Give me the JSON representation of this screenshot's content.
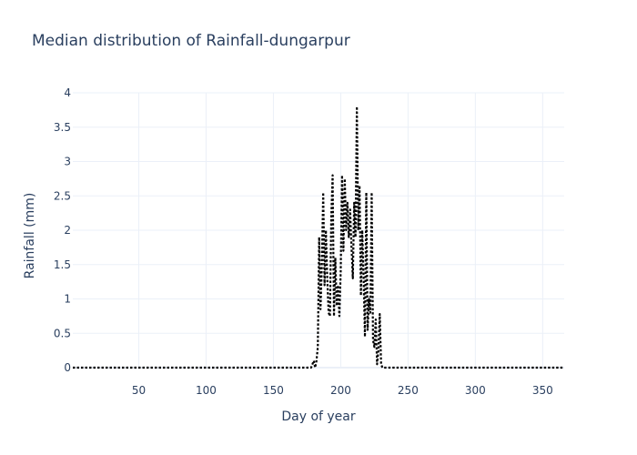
{
  "chart_data": {
    "type": "line",
    "title": "Median distribution of Rainfall-dungarpur",
    "xlabel": "Day of year",
    "ylabel": "Rainfall (mm)",
    "xlim": [
      1,
      366
    ],
    "ylim": [
      0,
      4
    ],
    "grid": true,
    "x_ticks": [
      50,
      100,
      150,
      200,
      250,
      300,
      350
    ],
    "y_ticks": [
      0,
      0.5,
      1,
      1.5,
      2,
      2.5,
      3,
      3.5,
      4
    ],
    "x_tick_labels": [
      "50",
      "100",
      "150",
      "200",
      "250",
      "300",
      "350"
    ],
    "y_tick_labels": [
      "0",
      "0.5",
      "1",
      "1.5",
      "2",
      "2.5",
      "3",
      "3.5",
      "4"
    ],
    "line_style": "dotted",
    "line_color": "#000000",
    "series": [
      {
        "x": [
          1,
          178,
          179,
          180,
          181,
          182,
          183,
          184,
          185,
          186,
          187,
          188,
          189,
          190,
          191,
          192,
          193,
          194,
          195,
          196,
          197,
          198,
          199,
          200,
          201,
          202,
          203,
          204,
          205,
          206,
          207,
          208,
          209,
          210,
          211,
          212,
          213,
          214,
          215,
          216,
          217,
          218,
          219,
          220,
          221,
          222,
          223,
          224,
          225,
          226,
          227,
          228,
          229,
          230,
          231,
          232,
          233,
          234,
          235,
          236,
          237,
          238,
          239,
          240,
          241,
          242,
          243,
          244,
          245,
          246,
          247,
          248,
          249,
          250,
          366
        ],
        "y": [
          0,
          0,
          0.05,
          0.1,
          0,
          0.1,
          0.3,
          1.9,
          0.85,
          1.5,
          2.55,
          1.2,
          2.0,
          1.3,
          0.8,
          0.75,
          2.2,
          2.8,
          0.75,
          1.6,
          0.9,
          1.2,
          0.75,
          1.4,
          2.8,
          1.7,
          2.75,
          2.0,
          2.4,
          1.9,
          2.3,
          1.75,
          1.3,
          2.4,
          1.9,
          3.8,
          2.0,
          2.65,
          1.05,
          2.0,
          1.3,
          0.45,
          2.55,
          0.55,
          1.0,
          0.8,
          2.55,
          0.4,
          0.3,
          0.7,
          0.05,
          0.25,
          0.78,
          0.05,
          0,
          0,
          0,
          0,
          0,
          0,
          0,
          0,
          0,
          0,
          0,
          0,
          0,
          0,
          0,
          0,
          0,
          0,
          0,
          0,
          0
        ]
      }
    ]
  }
}
